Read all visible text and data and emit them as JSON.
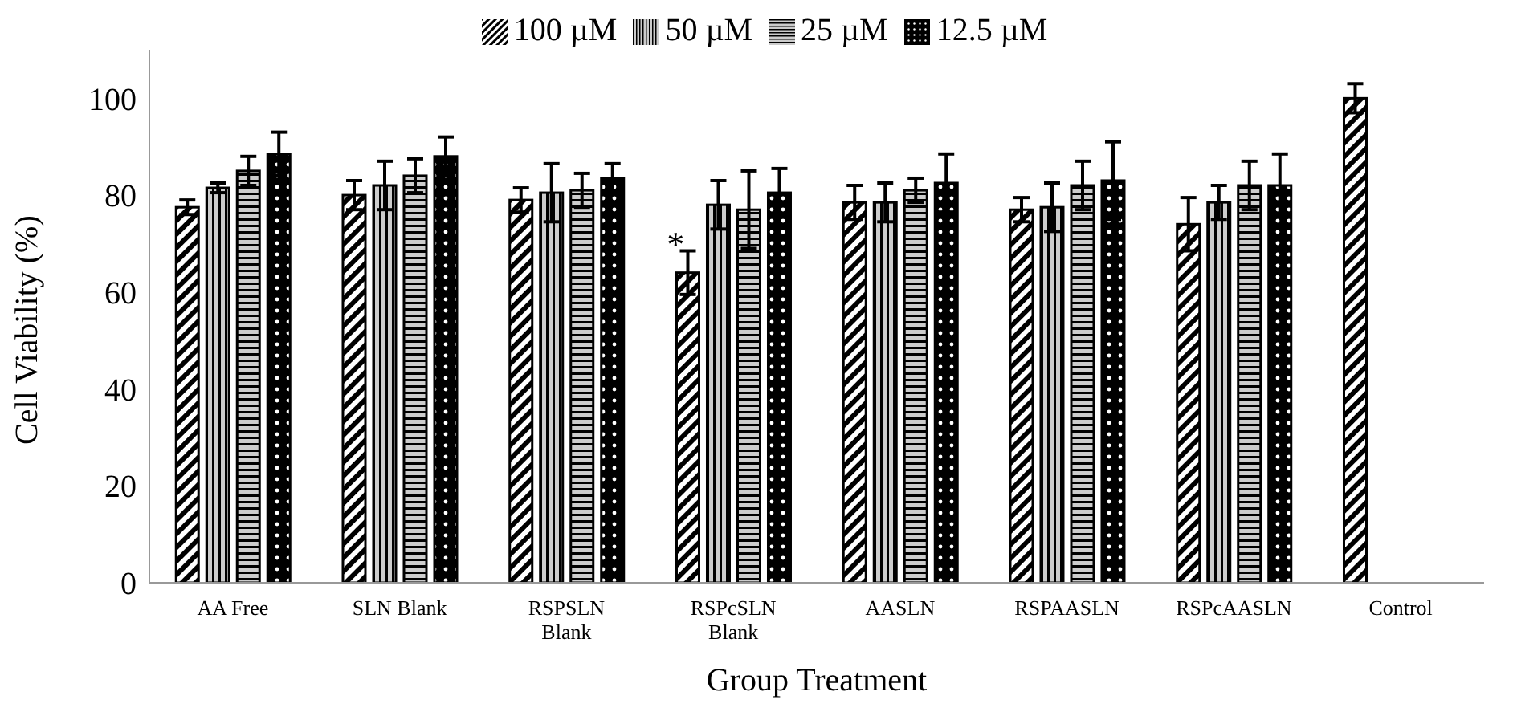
{
  "chart_data": {
    "type": "bar",
    "xlabel": "Group Treatment",
    "ylabel": "Cell Viability (%)",
    "categories": [
      "AA Free",
      "SLN Blank",
      "RSPSLN Blank",
      "RSPcSLN Blank",
      "AASLN",
      "RSPAASLN",
      "RSPcAASLN",
      "Control"
    ],
    "series": [
      {
        "name": "100 µM",
        "color": "#000000",
        "values": [
          77.5,
          80,
          79,
          64,
          78.5,
          77,
          74,
          100
        ],
        "errors": [
          1.5,
          3,
          2.5,
          4.5,
          3.5,
          2.5,
          5.5,
          3
        ]
      },
      {
        "name": "50 µM",
        "color": "#000000",
        "values": [
          81.5,
          82,
          80.5,
          78,
          78.5,
          77.5,
          78.5,
          null
        ],
        "errors": [
          1,
          5,
          6,
          5,
          4,
          5,
          3.5,
          null
        ]
      },
      {
        "name": "25 µM",
        "color": "#000000",
        "values": [
          85,
          84,
          81,
          77,
          81,
          82,
          82,
          null
        ],
        "errors": [
          3,
          3.5,
          3.5,
          8,
          2.5,
          5,
          5,
          null
        ]
      },
      {
        "name": "12.5 µM",
        "color": "#000000",
        "values": [
          88.5,
          88,
          83.5,
          80.5,
          82.5,
          83,
          82,
          null
        ],
        "errors": [
          4.5,
          4,
          3,
          5,
          6,
          8,
          6.5,
          null
        ]
      }
    ],
    "ylim": [
      0,
      110
    ],
    "yticks": [
      0,
      20,
      40,
      60,
      80,
      100
    ],
    "annotations": [
      {
        "text": "*",
        "x": "RSPcSLN Blank",
        "y": 70
      }
    ],
    "legend": "top"
  }
}
